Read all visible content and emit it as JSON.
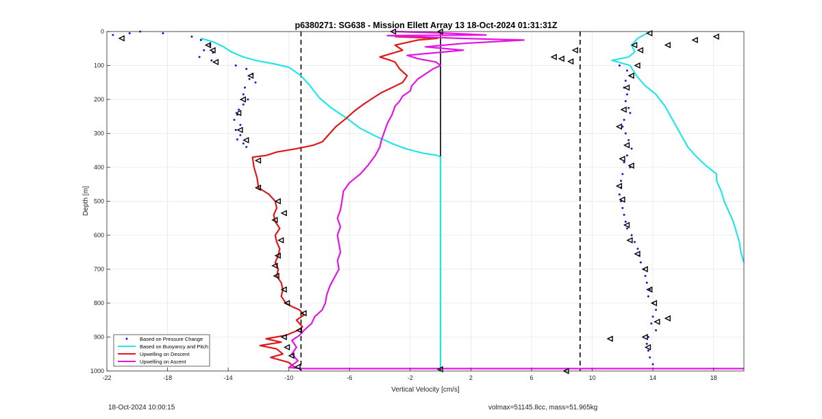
{
  "chart_data": {
    "type": "line",
    "title": "p6380271: SG638 - Mission Ellett Array 13 18-Oct-2024 01:31:31Z",
    "xlabel": "Vertical Velocity [cm/s]",
    "ylabel": "Depth [m]",
    "xlim": [
      -22,
      20
    ],
    "ylim": [
      0,
      1000
    ],
    "y_reversed": true,
    "grid": true,
    "legend_position": "bottom-left",
    "x_ticks": [
      -22,
      -18,
      -14,
      -10,
      -6,
      -2,
      2,
      6,
      10,
      14,
      18
    ],
    "x_tick_labels": [
      "-22",
      "-18",
      "-14",
      "-10",
      "-6",
      "-2",
      "2",
      "6",
      "10",
      "14",
      "18"
    ],
    "y_ticks": [
      0,
      100,
      200,
      300,
      400,
      500,
      600,
      700,
      800,
      900,
      1000
    ],
    "y_tick_labels": [
      "0",
      "100",
      "200",
      "300",
      "400",
      "500",
      "600",
      "700",
      "800",
      "900",
      "1000"
    ],
    "reference_lines": [
      {
        "x": -9.2,
        "style": "dashed",
        "color": "#000000"
      },
      {
        "x": 0,
        "style": "solid",
        "color": "#000000"
      },
      {
        "x": 9.2,
        "style": "dashed",
        "color": "#000000"
      }
    ],
    "series": [
      {
        "name": "Based on Pressure Change",
        "style": "dots",
        "color": "#1515d8",
        "points": [
          [
            -21.6,
            10
          ],
          [
            -20.5,
            5
          ],
          [
            -19.8,
            0
          ],
          [
            -18.3,
            5
          ],
          [
            -16.4,
            15
          ],
          [
            -15.8,
            25
          ],
          [
            -15.2,
            40
          ],
          [
            -15.6,
            55
          ],
          [
            -15.0,
            62
          ],
          [
            -15.9,
            75
          ],
          [
            -15.1,
            85
          ],
          [
            -13.5,
            100
          ],
          [
            -12.8,
            110
          ],
          [
            -12.4,
            125
          ],
          [
            -12.6,
            140
          ],
          [
            -12.2,
            150
          ],
          [
            -12.9,
            165
          ],
          [
            -13.0,
            185
          ],
          [
            -12.7,
            200
          ],
          [
            -13.0,
            215
          ],
          [
            -13.3,
            230
          ],
          [
            -13.4,
            245
          ],
          [
            -13.6,
            260
          ],
          [
            -13.2,
            275
          ],
          [
            -13.5,
            290
          ],
          [
            -13.2,
            305
          ],
          [
            -13.4,
            318
          ],
          [
            -13.0,
            330
          ],
          [
            -12.8,
            340
          ],
          [
            11.8,
            100
          ],
          [
            12.3,
            115
          ],
          [
            12.5,
            130
          ],
          [
            12.2,
            145
          ],
          [
            12.1,
            165
          ],
          [
            12.3,
            185
          ],
          [
            12.2,
            205
          ],
          [
            12.4,
            225
          ],
          [
            12.5,
            240
          ],
          [
            12.1,
            260
          ],
          [
            12.0,
            280
          ],
          [
            12.2,
            300
          ],
          [
            12.4,
            320
          ],
          [
            12.6,
            345
          ],
          [
            12.3,
            365
          ],
          [
            12.1,
            385
          ],
          [
            12.5,
            400
          ],
          [
            12.0,
            420
          ],
          [
            11.9,
            440
          ],
          [
            11.9,
            460
          ],
          [
            11.8,
            480
          ],
          [
            11.9,
            500
          ],
          [
            12.0,
            520
          ],
          [
            12.1,
            540
          ],
          [
            12.2,
            560
          ],
          [
            12.3,
            580
          ],
          [
            12.6,
            600
          ],
          [
            12.8,
            620
          ],
          [
            13.0,
            640
          ],
          [
            13.1,
            660
          ],
          [
            13.2,
            680
          ],
          [
            13.4,
            700
          ],
          [
            13.5,
            720
          ],
          [
            13.6,
            740
          ],
          [
            13.8,
            760
          ],
          [
            13.7,
            780
          ],
          [
            14.0,
            800
          ],
          [
            14.2,
            820
          ],
          [
            14.0,
            840
          ],
          [
            13.9,
            860
          ],
          [
            14.2,
            880
          ],
          [
            13.7,
            900
          ],
          [
            13.6,
            920
          ],
          [
            13.7,
            940
          ],
          [
            13.8,
            960
          ],
          [
            14.0,
            980
          ]
        ]
      },
      {
        "name": "Based on Buoyancy and Pitch",
        "style": "line",
        "color": "#22e5e8",
        "points": [
          [
            -15.8,
            20
          ],
          [
            -15.0,
            30
          ],
          [
            -14.3,
            45
          ],
          [
            -13.8,
            60
          ],
          [
            -13.0,
            75
          ],
          [
            -12.2,
            85
          ],
          [
            -11.0,
            95
          ],
          [
            -10.0,
            105
          ],
          [
            -9.2,
            130
          ],
          [
            -8.6,
            160
          ],
          [
            -8.0,
            195
          ],
          [
            -7.2,
            225
          ],
          [
            -6.2,
            255
          ],
          [
            -5.3,
            285
          ],
          [
            -4.2,
            310
          ],
          [
            -3.2,
            330
          ],
          [
            -2.3,
            345
          ],
          [
            -1.2,
            358
          ],
          [
            -0.2,
            365
          ],
          [
            0,
            370
          ],
          [
            0,
            990
          ],
          [
            13.8,
            0
          ],
          [
            13.0,
            20
          ],
          [
            12.6,
            40
          ],
          [
            12.8,
            60
          ],
          [
            12.4,
            75
          ],
          [
            11.3,
            85
          ],
          [
            12.5,
            100
          ],
          [
            12.7,
            115
          ],
          [
            13.0,
            135
          ],
          [
            13.5,
            160
          ],
          [
            14.2,
            185
          ],
          [
            14.8,
            220
          ],
          [
            15.3,
            260
          ],
          [
            15.8,
            300
          ],
          [
            16.3,
            340
          ],
          [
            16.9,
            370
          ],
          [
            17.5,
            395
          ],
          [
            18.2,
            420
          ],
          [
            18.2,
            440
          ],
          [
            18.5,
            470
          ],
          [
            18.7,
            500
          ],
          [
            19.0,
            530
          ],
          [
            19.3,
            560
          ],
          [
            19.5,
            590
          ],
          [
            19.7,
            620
          ],
          [
            19.8,
            650
          ],
          [
            20,
            680
          ]
        ]
      },
      {
        "name": "Upwelling on Descent",
        "style": "line",
        "color": "#e01717",
        "points": [
          [
            -3.0,
            15
          ],
          [
            -0.2,
            20
          ],
          [
            -1.5,
            25
          ],
          [
            -3.0,
            40
          ],
          [
            -2.5,
            55
          ],
          [
            -4.0,
            75
          ],
          [
            -3.3,
            85
          ],
          [
            -3.0,
            90
          ],
          [
            -2.7,
            110
          ],
          [
            -2.2,
            130
          ],
          [
            -2.5,
            150
          ],
          [
            -3.2,
            165
          ],
          [
            -3.9,
            180
          ],
          [
            -4.6,
            200
          ],
          [
            -5.1,
            215
          ],
          [
            -5.7,
            235
          ],
          [
            -6.2,
            255
          ],
          [
            -6.9,
            280
          ],
          [
            -7.3,
            300
          ],
          [
            -7.8,
            325
          ],
          [
            -8.4,
            335
          ],
          [
            -9.5,
            345
          ],
          [
            -10.8,
            355
          ],
          [
            -11.5,
            365
          ],
          [
            -12.4,
            370
          ],
          [
            -12.3,
            400
          ],
          [
            -12.1,
            430
          ],
          [
            -12.0,
            460
          ],
          [
            -11.3,
            480
          ],
          [
            -10.9,
            500
          ],
          [
            -10.8,
            520
          ],
          [
            -11.0,
            540
          ],
          [
            -10.9,
            560
          ],
          [
            -10.6,
            580
          ],
          [
            -10.9,
            600
          ],
          [
            -10.8,
            620
          ],
          [
            -10.6,
            640
          ],
          [
            -10.7,
            660
          ],
          [
            -10.9,
            680
          ],
          [
            -10.7,
            700
          ],
          [
            -10.8,
            720
          ],
          [
            -10.5,
            740
          ],
          [
            -10.4,
            760
          ],
          [
            -10.5,
            780
          ],
          [
            -10.2,
            800
          ],
          [
            -9.8,
            810
          ],
          [
            -9.3,
            820
          ],
          [
            -9.0,
            835
          ],
          [
            -9.5,
            850
          ],
          [
            -9.1,
            870
          ],
          [
            -9.4,
            880
          ],
          [
            -10.2,
            895
          ],
          [
            -11.5,
            905
          ],
          [
            -10.5,
            915
          ],
          [
            -11.9,
            925
          ],
          [
            -10.8,
            935
          ],
          [
            -10.4,
            950
          ],
          [
            -11.2,
            960
          ],
          [
            -10.0,
            975
          ],
          [
            -9.6,
            990
          ]
        ]
      },
      {
        "name": "Upwelling on Ascent",
        "style": "line",
        "color": "#e413e4",
        "points": [
          [
            -3.0,
            0
          ],
          [
            0.5,
            5
          ],
          [
            3.0,
            10
          ],
          [
            -3.5,
            12
          ],
          [
            1.2,
            20
          ],
          [
            5.5,
            25
          ],
          [
            1.5,
            35
          ],
          [
            -1.0,
            45
          ],
          [
            1.5,
            55
          ],
          [
            -2.2,
            70
          ],
          [
            -1.5,
            80
          ],
          [
            -0.3,
            90
          ],
          [
            0,
            100
          ],
          [
            -0.5,
            110
          ],
          [
            -1.0,
            125
          ],
          [
            -1.5,
            140
          ],
          [
            -1.9,
            160
          ],
          [
            -2.0,
            175
          ],
          [
            -2.5,
            190
          ],
          [
            -2.7,
            205
          ],
          [
            -3.0,
            220
          ],
          [
            -3.2,
            245
          ],
          [
            -3.5,
            270
          ],
          [
            -3.7,
            295
          ],
          [
            -3.9,
            320
          ],
          [
            -4.0,
            340
          ],
          [
            -4.3,
            365
          ],
          [
            -4.8,
            395
          ],
          [
            -5.3,
            420
          ],
          [
            -6.0,
            445
          ],
          [
            -6.4,
            470
          ],
          [
            -6.5,
            500
          ],
          [
            -6.6,
            525
          ],
          [
            -6.8,
            550
          ],
          [
            -6.6,
            575
          ],
          [
            -6.8,
            600
          ],
          [
            -6.7,
            625
          ],
          [
            -6.6,
            650
          ],
          [
            -6.8,
            675
          ],
          [
            -6.7,
            700
          ],
          [
            -7.0,
            725
          ],
          [
            -7.3,
            750
          ],
          [
            -7.5,
            775
          ],
          [
            -7.6,
            800
          ],
          [
            -7.8,
            820
          ],
          [
            -8.3,
            840
          ],
          [
            -8.5,
            860
          ],
          [
            -9.0,
            880
          ],
          [
            -9.3,
            895
          ],
          [
            -9.8,
            910
          ],
          [
            -9.5,
            930
          ],
          [
            -9.8,
            950
          ],
          [
            -9.4,
            970
          ],
          [
            -10.0,
            990
          ],
          [
            -9.0,
            993
          ],
          [
            20,
            993
          ]
        ]
      }
    ],
    "markers": [
      {
        "x": -21.0,
        "y": 20
      },
      {
        "x": -15.3,
        "y": 40
      },
      {
        "x": -15.0,
        "y": 55
      },
      {
        "x": -14.8,
        "y": 90
      },
      {
        "x": -12.5,
        "y": 130
      },
      {
        "x": -13.0,
        "y": 200
      },
      {
        "x": -13.3,
        "y": 240
      },
      {
        "x": -13.2,
        "y": 290
      },
      {
        "x": -12.8,
        "y": 320
      },
      {
        "x": -12.0,
        "y": 380
      },
      {
        "x": -12.0,
        "y": 460
      },
      {
        "x": -10.7,
        "y": 500
      },
      {
        "x": -10.3,
        "y": 535
      },
      {
        "x": -10.9,
        "y": 555
      },
      {
        "x": -10.5,
        "y": 615
      },
      {
        "x": -10.7,
        "y": 660
      },
      {
        "x": -10.9,
        "y": 690
      },
      {
        "x": -10.8,
        "y": 720
      },
      {
        "x": -10.3,
        "y": 760
      },
      {
        "x": -10.1,
        "y": 800
      },
      {
        "x": -9.0,
        "y": 830
      },
      {
        "x": -9.3,
        "y": 880
      },
      {
        "x": -10.3,
        "y": 900
      },
      {
        "x": -10.1,
        "y": 930
      },
      {
        "x": -9.8,
        "y": 955
      },
      {
        "x": -9.4,
        "y": 988
      },
      {
        "x": -3.1,
        "y": 0
      },
      {
        "x": 0,
        "y": 0
      },
      {
        "x": 0,
        "y": 995
      },
      {
        "x": 8.0,
        "y": 80
      },
      {
        "x": 8.6,
        "y": 88
      },
      {
        "x": 8.9,
        "y": 55
      },
      {
        "x": 7.5,
        "y": 75
      },
      {
        "x": 8.3,
        "y": 1000
      },
      {
        "x": 13.8,
        "y": 5
      },
      {
        "x": 12.8,
        "y": 40
      },
      {
        "x": 13.2,
        "y": 55
      },
      {
        "x": 15.0,
        "y": 40
      },
      {
        "x": 16.8,
        "y": 25
      },
      {
        "x": 18.2,
        "y": 15
      },
      {
        "x": 13.0,
        "y": 100
      },
      {
        "x": 12.6,
        "y": 130
      },
      {
        "x": 12.3,
        "y": 165
      },
      {
        "x": 12.1,
        "y": 230
      },
      {
        "x": 11.8,
        "y": 280
      },
      {
        "x": 12.3,
        "y": 335
      },
      {
        "x": 12.0,
        "y": 375
      },
      {
        "x": 12.6,
        "y": 395
      },
      {
        "x": 11.8,
        "y": 455
      },
      {
        "x": 12.0,
        "y": 495
      },
      {
        "x": 12.3,
        "y": 570
      },
      {
        "x": 12.5,
        "y": 615
      },
      {
        "x": 13.0,
        "y": 655
      },
      {
        "x": 13.5,
        "y": 700
      },
      {
        "x": 13.8,
        "y": 760
      },
      {
        "x": 14.1,
        "y": 800
      },
      {
        "x": 14.3,
        "y": 855
      },
      {
        "x": 15.0,
        "y": 845
      },
      {
        "x": 13.5,
        "y": 900
      },
      {
        "x": 11.2,
        "y": 905
      },
      {
        "x": 13.7,
        "y": 930
      }
    ],
    "legend": [
      "Based on Pressure Change",
      "Based on Buoyancy and Pitch",
      "Upwelling on Descent",
      "Upwelling on Ascent"
    ]
  },
  "footer": {
    "timestamp": "18-Oct-2024 10:00:15",
    "params": "volmax=51145.8cc, mass=51.965kg"
  },
  "colors": {
    "pressure": "#1515d8",
    "buoyancy": "#22e5e8",
    "descent": "#e01717",
    "ascent": "#e413e4"
  }
}
